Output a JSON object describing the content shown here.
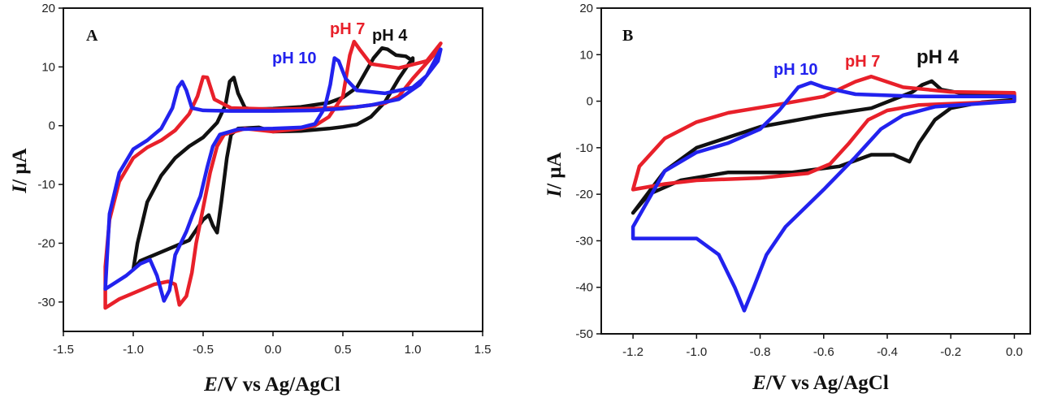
{
  "chart_data": [
    {
      "type": "line",
      "panel_label": "A",
      "xlabel_italic": "E",
      "xlabel_rest": "/V vs Ag/AgCl",
      "ylabel_italic": "I",
      "ylabel_rest": "/ μA",
      "xlim": [
        -1.5,
        1.5
      ],
      "ylim": [
        -35,
        20
      ],
      "xticks": [
        -1.5,
        -1.0,
        -0.5,
        0.0,
        0.5,
        1.0,
        1.5
      ],
      "xtick_labels": [
        "-1.5",
        "-1.0",
        "-0.5",
        "0.0",
        "0.5",
        "1.0",
        "1.5"
      ],
      "yticks": [
        -30,
        -20,
        -10,
        0,
        10,
        20
      ],
      "ytick_labels": [
        "-30",
        "-20",
        "-10",
        "0",
        "10",
        "20"
      ],
      "grid": false,
      "series": [
        {
          "name": "pH 4",
          "color": "#111111",
          "label": "pH 4",
          "points": [
            [
              0.0,
              -1.0
            ],
            [
              0.2,
              -0.9
            ],
            [
              0.4,
              -0.5
            ],
            [
              0.5,
              -0.2
            ],
            [
              0.6,
              0.2
            ],
            [
              0.7,
              1.5
            ],
            [
              0.8,
              4
            ],
            [
              0.9,
              8
            ],
            [
              1.0,
              11.5
            ],
            [
              1.0,
              11
            ],
            [
              0.95,
              11.8
            ],
            [
              0.88,
              12
            ],
            [
              0.82,
              13
            ],
            [
              0.78,
              13.2
            ],
            [
              0.72,
              11.5
            ],
            [
              0.66,
              9
            ],
            [
              0.6,
              6.5
            ],
            [
              0.5,
              4.8
            ],
            [
              0.4,
              3.9
            ],
            [
              0.2,
              3.2
            ],
            [
              0.0,
              2.9
            ],
            [
              -0.15,
              2.8
            ],
            [
              -0.2,
              3.0
            ],
            [
              -0.25,
              5.5
            ],
            [
              -0.28,
              8.2
            ],
            [
              -0.31,
              7.5
            ],
            [
              -0.34,
              3.5
            ],
            [
              -0.4,
              0.5
            ],
            [
              -0.5,
              -2.0
            ],
            [
              -0.6,
              -3.5
            ],
            [
              -0.7,
              -5.5
            ],
            [
              -0.8,
              -8.5
            ],
            [
              -0.9,
              -13
            ],
            [
              -0.97,
              -20
            ],
            [
              -1.0,
              -24.5
            ],
            [
              -0.95,
              -23
            ],
            [
              -0.8,
              -21.5
            ],
            [
              -0.6,
              -19.5
            ],
            [
              -0.5,
              -16
            ],
            [
              -0.46,
              -15.2
            ],
            [
              -0.43,
              -17
            ],
            [
              -0.4,
              -18.2
            ],
            [
              -0.37,
              -13
            ],
            [
              -0.33,
              -5.5
            ],
            [
              -0.3,
              -1.5
            ],
            [
              -0.25,
              -0.5
            ],
            [
              -0.1,
              -0.3
            ],
            [
              0.0,
              -1.0
            ]
          ]
        },
        {
          "name": "pH 7",
          "color": "#e8202a",
          "label": "pH 7",
          "points": [
            [
              0.0,
              -1.0
            ],
            [
              0.2,
              -0.5
            ],
            [
              0.3,
              0.0
            ],
            [
              0.4,
              1.5
            ],
            [
              0.5,
              5
            ],
            [
              0.55,
              12
            ],
            [
              0.58,
              14.3
            ],
            [
              0.62,
              13
            ],
            [
              0.7,
              10.5
            ],
            [
              0.9,
              9.8
            ],
            [
              1.1,
              11
            ],
            [
              1.2,
              14
            ],
            [
              1.15,
              12
            ],
            [
              1.0,
              8
            ],
            [
              0.9,
              5
            ],
            [
              0.8,
              3.8
            ],
            [
              0.6,
              3.2
            ],
            [
              0.3,
              2.9
            ],
            [
              0.0,
              2.8
            ],
            [
              -0.3,
              3.0
            ],
            [
              -0.42,
              4.5
            ],
            [
              -0.47,
              8.2
            ],
            [
              -0.5,
              8.3
            ],
            [
              -0.54,
              5
            ],
            [
              -0.6,
              2.0
            ],
            [
              -0.7,
              -0.8
            ],
            [
              -0.8,
              -2.5
            ],
            [
              -0.9,
              -3.7
            ],
            [
              -1.0,
              -5.5
            ],
            [
              -1.1,
              -9.5
            ],
            [
              -1.17,
              -16
            ],
            [
              -1.2,
              -24
            ],
            [
              -1.2,
              -31
            ],
            [
              -1.1,
              -29.5
            ],
            [
              -0.95,
              -28
            ],
            [
              -0.85,
              -27
            ],
            [
              -0.75,
              -26.5
            ],
            [
              -0.7,
              -27
            ],
            [
              -0.67,
              -30.5
            ],
            [
              -0.62,
              -29
            ],
            [
              -0.58,
              -25
            ],
            [
              -0.55,
              -20
            ],
            [
              -0.5,
              -14
            ],
            [
              -0.45,
              -8
            ],
            [
              -0.4,
              -3.5
            ],
            [
              -0.35,
              -1.5
            ],
            [
              -0.2,
              -0.5
            ],
            [
              0.0,
              -1.0
            ]
          ]
        },
        {
          "name": "pH 10",
          "color": "#2222ee",
          "label": "pH 10",
          "points": [
            [
              0.0,
              -0.5
            ],
            [
              0.2,
              -0.3
            ],
            [
              0.3,
              0.3
            ],
            [
              0.37,
              3
            ],
            [
              0.41,
              7
            ],
            [
              0.44,
              11.5
            ],
            [
              0.47,
              11
            ],
            [
              0.52,
              8
            ],
            [
              0.6,
              6
            ],
            [
              0.8,
              5.5
            ],
            [
              1.0,
              6.5
            ],
            [
              1.1,
              8.5
            ],
            [
              1.2,
              13
            ],
            [
              1.18,
              11
            ],
            [
              1.05,
              7
            ],
            [
              0.9,
              4.5
            ],
            [
              0.7,
              3.5
            ],
            [
              0.5,
              2.9
            ],
            [
              0.3,
              2.6
            ],
            [
              0.0,
              2.5
            ],
            [
              -0.3,
              2.5
            ],
            [
              -0.5,
              2.6
            ],
            [
              -0.58,
              3
            ],
            [
              -0.62,
              6
            ],
            [
              -0.65,
              7.5
            ],
            [
              -0.68,
              6.5
            ],
            [
              -0.72,
              3
            ],
            [
              -0.8,
              -0.5
            ],
            [
              -0.9,
              -2.5
            ],
            [
              -1.0,
              -4
            ],
            [
              -1.1,
              -8
            ],
            [
              -1.17,
              -15
            ],
            [
              -1.2,
              -27.8
            ],
            [
              -1.05,
              -25.5
            ],
            [
              -0.95,
              -23.5
            ],
            [
              -0.88,
              -22.8
            ],
            [
              -0.83,
              -25.5
            ],
            [
              -0.78,
              -29.8
            ],
            [
              -0.74,
              -28
            ],
            [
              -0.7,
              -22
            ],
            [
              -0.62,
              -18
            ],
            [
              -0.58,
              -15.5
            ],
            [
              -0.52,
              -12
            ],
            [
              -0.47,
              -7
            ],
            [
              -0.43,
              -3.5
            ],
            [
              -0.38,
              -1.5
            ],
            [
              -0.25,
              -0.6
            ],
            [
              0.0,
              -0.5
            ]
          ]
        }
      ]
    },
    {
      "type": "line",
      "panel_label": "B",
      "xlabel_italic": "E",
      "xlabel_rest": "/V vs Ag/AgCl",
      "ylabel_italic": "I",
      "ylabel_rest": "/ μA",
      "xlim": [
        -1.3,
        0.05
      ],
      "ylim": [
        -50,
        20
      ],
      "xticks": [
        -1.2,
        -1.0,
        -0.8,
        -0.6,
        -0.4,
        -0.2,
        0.0
      ],
      "xtick_labels": [
        "-1.2",
        "-1.0",
        "-0.8",
        "-0.6",
        "-0.4",
        "-0.2",
        "0.0"
      ],
      "yticks": [
        -50,
        -40,
        -30,
        -20,
        -10,
        0,
        10,
        20
      ],
      "ytick_labels": [
        "-50",
        "-40",
        "-30",
        "-20",
        "-10",
        "0",
        "10",
        "20"
      ],
      "grid": false,
      "series": [
        {
          "name": "pH 4",
          "color": "#111111",
          "label": "pH 4",
          "points": [
            [
              -1.2,
              -24
            ],
            [
              -1.15,
              -20
            ],
            [
              -1.05,
              -17
            ],
            [
              -0.9,
              -15.3
            ],
            [
              -0.7,
              -15.3
            ],
            [
              -0.55,
              -14
            ],
            [
              -0.45,
              -11.5
            ],
            [
              -0.38,
              -11.5
            ],
            [
              -0.33,
              -13
            ],
            [
              -0.3,
              -9
            ],
            [
              -0.25,
              -4
            ],
            [
              -0.2,
              -1.5
            ],
            [
              -0.1,
              -0.2
            ],
            [
              0.0,
              0.3
            ],
            [
              0.0,
              1.5
            ],
            [
              -0.15,
              1.5
            ],
            [
              -0.23,
              2.5
            ],
            [
              -0.26,
              4.3
            ],
            [
              -0.29,
              3.5
            ],
            [
              -0.32,
              2.0
            ],
            [
              -0.45,
              -1.5
            ],
            [
              -0.6,
              -3
            ],
            [
              -0.8,
              -5.5
            ],
            [
              -1.0,
              -10
            ],
            [
              -1.1,
              -15
            ],
            [
              -1.2,
              -24
            ]
          ]
        },
        {
          "name": "pH 7",
          "color": "#e8202a",
          "label": "pH 7",
          "points": [
            [
              -1.2,
              -19
            ],
            [
              -1.1,
              -17.8
            ],
            [
              -1.0,
              -17
            ],
            [
              -0.8,
              -16.5
            ],
            [
              -0.65,
              -15.5
            ],
            [
              -0.58,
              -13.5
            ],
            [
              -0.52,
              -9
            ],
            [
              -0.46,
              -4
            ],
            [
              -0.4,
              -2
            ],
            [
              -0.3,
              -0.8
            ],
            [
              0.0,
              0.0
            ],
            [
              0.0,
              1.8
            ],
            [
              -0.2,
              2.0
            ],
            [
              -0.35,
              3.0
            ],
            [
              -0.45,
              5.3
            ],
            [
              -0.5,
              4.2
            ],
            [
              -0.6,
              1
            ],
            [
              -0.75,
              -0.8
            ],
            [
              -0.9,
              -2.5
            ],
            [
              -1.0,
              -4.5
            ],
            [
              -1.1,
              -8
            ],
            [
              -1.18,
              -14
            ],
            [
              -1.2,
              -19
            ]
          ]
        },
        {
          "name": "pH 10",
          "color": "#2222ee",
          "label": "pH 10",
          "points": [
            [
              -1.2,
              -29.5
            ],
            [
              -1.0,
              -29.5
            ],
            [
              -0.93,
              -33
            ],
            [
              -0.88,
              -40
            ],
            [
              -0.85,
              -45
            ],
            [
              -0.82,
              -40
            ],
            [
              -0.78,
              -33
            ],
            [
              -0.72,
              -27
            ],
            [
              -0.6,
              -19
            ],
            [
              -0.5,
              -12
            ],
            [
              -0.42,
              -6
            ],
            [
              -0.35,
              -3
            ],
            [
              -0.25,
              -1.2
            ],
            [
              0.0,
              0.0
            ],
            [
              0.0,
              1.0
            ],
            [
              -0.3,
              1.0
            ],
            [
              -0.5,
              1.5
            ],
            [
              -0.6,
              3
            ],
            [
              -0.64,
              4
            ],
            [
              -0.68,
              3
            ],
            [
              -0.74,
              -2
            ],
            [
              -0.8,
              -6
            ],
            [
              -0.9,
              -9
            ],
            [
              -1.0,
              -11
            ],
            [
              -1.1,
              -15
            ],
            [
              -1.2,
              -27
            ],
            [
              -1.2,
              -29.5
            ]
          ]
        }
      ]
    }
  ]
}
